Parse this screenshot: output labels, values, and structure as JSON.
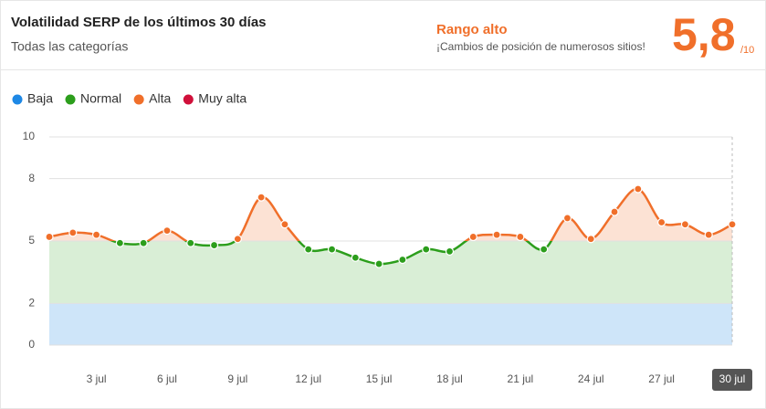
{
  "chart_data": {
    "type": "line",
    "title": "Volatilidad SERP de los últimos 30 días",
    "subtitle": "Todas las categorías",
    "level": "Rango alto",
    "level_description": "¡Cambios de posición de numerosos sitios!",
    "score": {
      "value": 5.8,
      "label": "5,8"
    },
    "score_max": {
      "value": 10,
      "label": "/10"
    },
    "legend": [
      {
        "name": "Baja",
        "color": "#1e88e5",
        "from": 0,
        "to": 2
      },
      {
        "name": "Normal",
        "color": "#2c9e1c",
        "from": 2,
        "to": 5
      },
      {
        "name": "Alta",
        "color": "#f06f2a",
        "from": 5,
        "to": 8
      },
      {
        "name": "Muy alta",
        "color": "#d0103a",
        "from": 8,
        "to": 10
      }
    ],
    "categories": [
      null,
      null,
      "3 jul",
      null,
      null,
      "6 jul",
      null,
      null,
      "9 jul",
      null,
      null,
      "12 jul",
      null,
      null,
      "15 jul",
      null,
      null,
      "18 jul",
      null,
      null,
      "21 jul",
      null,
      null,
      "24 jul",
      null,
      null,
      "27 jul",
      null,
      null,
      "30 jul"
    ],
    "values": [
      5.2,
      5.4,
      5.3,
      4.9,
      4.9,
      5.5,
      4.9,
      4.8,
      5.1,
      7.1,
      5.8,
      4.6,
      4.6,
      4.2,
      3.9,
      4.1,
      4.6,
      4.5,
      5.2,
      5.3,
      5.2,
      4.6,
      6.1,
      5.1,
      6.4,
      7.5,
      5.9,
      5.8,
      5.3,
      5.8
    ],
    "ylim": [
      0,
      10
    ],
    "yticks": [
      0,
      2,
      5,
      8,
      10
    ],
    "grid": true
  }
}
